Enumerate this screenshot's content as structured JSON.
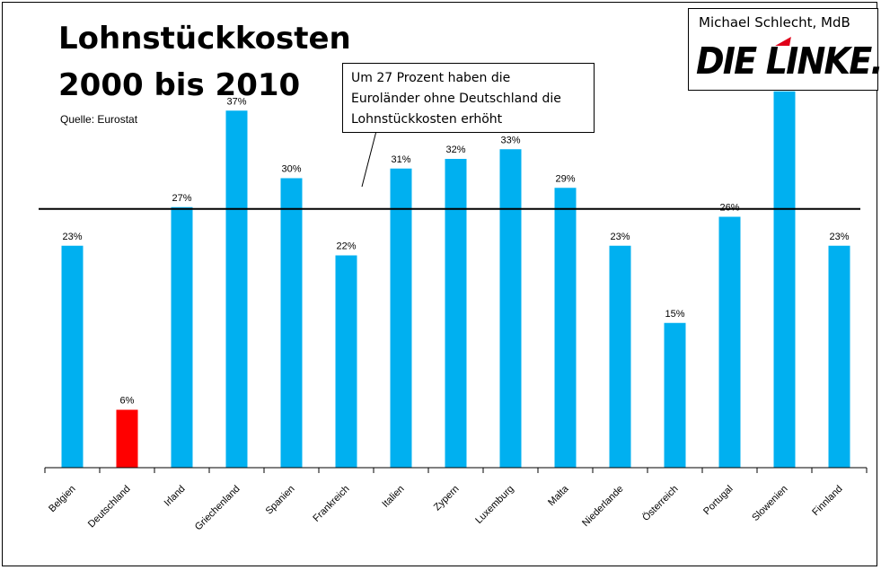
{
  "header": {
    "title_line1": "Lohnstückkosten",
    "title_line2": "2000 bis 2010",
    "source": "Quelle: Eurostat"
  },
  "callout": {
    "line1": "Um 27 Prozent haben die",
    "line2": "Euroländer ohne Deutschland die",
    "line3": "Lohnstückkosten erhöht"
  },
  "logo": {
    "person": "Michael Schlecht, MdB",
    "party": "DIE LINKE."
  },
  "colors": {
    "bar": "#00b0f0",
    "highlight": "#ff0000",
    "axis": "#000000",
    "reference_line": "#000000"
  },
  "chart_data": {
    "type": "bar",
    "title": "Lohnstückkosten 2000 bis 2010",
    "categories": [
      "Belgien",
      "Deutschland",
      "Irland",
      "Griechenland",
      "Spanien",
      "Frankreich",
      "Italien",
      "Zypern",
      "Luxemburg",
      "Malta",
      "Niederlande",
      "Österreich",
      "Portugal",
      "Slowenien",
      "Finnland"
    ],
    "values": [
      23,
      6,
      27,
      37,
      30,
      22,
      31,
      32,
      33,
      29,
      23,
      15,
      26,
      39,
      23
    ],
    "value_labels": [
      "23%",
      "6%",
      "27%",
      "37%",
      "30%",
      "22%",
      "31%",
      "32%",
      "33%",
      "29%",
      "23%",
      "15%",
      "26%",
      "",
      "23%"
    ],
    "highlight_category": "Deutschland",
    "reference_line": 27,
    "unit": "%",
    "ylim": [
      0,
      40
    ],
    "grid": false,
    "legend": "none"
  }
}
